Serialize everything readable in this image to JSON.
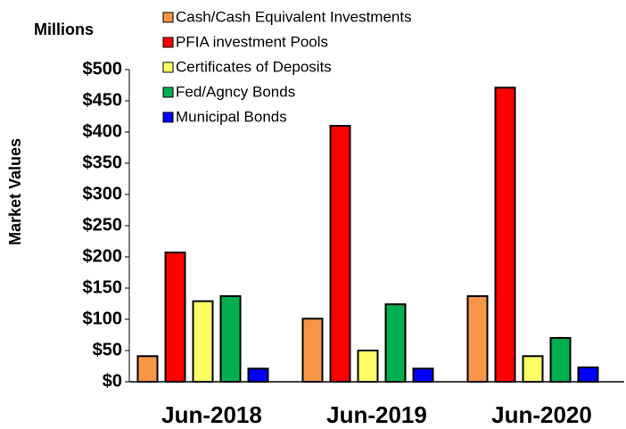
{
  "chart_data": {
    "type": "bar",
    "ylabel": "Market Values",
    "unit_label": "Millions",
    "categories": [
      "Jun-2018",
      "Jun-2019",
      "Jun-2020"
    ],
    "series": [
      {
        "name": "Cash/Cash Equivalent Investments",
        "color": "#f79646",
        "values": [
          41,
          101,
          137
        ]
      },
      {
        "name": "PFIA investment Pools",
        "color": "#ff0000",
        "values": [
          207,
          410,
          471
        ]
      },
      {
        "name": "Certificates of Deposits",
        "color": "#ffff66",
        "values": [
          129,
          50,
          41
        ]
      },
      {
        "name": "Fed/Agncy Bonds",
        "color": "#00b050",
        "values": [
          137,
          124,
          70
        ]
      },
      {
        "name": "Municipal Bonds",
        "color": "#0000ff",
        "values": [
          21,
          21,
          23
        ]
      }
    ],
    "ylim": [
      0,
      500
    ],
    "yticks": [
      {
        "value": 0,
        "label": "$0"
      },
      {
        "value": 50,
        "label": "$50"
      },
      {
        "value": 100,
        "label": "$100"
      },
      {
        "value": 150,
        "label": "$150"
      },
      {
        "value": 200,
        "label": "$200"
      },
      {
        "value": 250,
        "label": "$250"
      },
      {
        "value": 300,
        "label": "$300"
      },
      {
        "value": 350,
        "label": "$350"
      },
      {
        "value": 400,
        "label": "$400"
      },
      {
        "value": 450,
        "label": "$450"
      },
      {
        "value": 500,
        "label": "$500"
      }
    ],
    "legend": "top"
  }
}
